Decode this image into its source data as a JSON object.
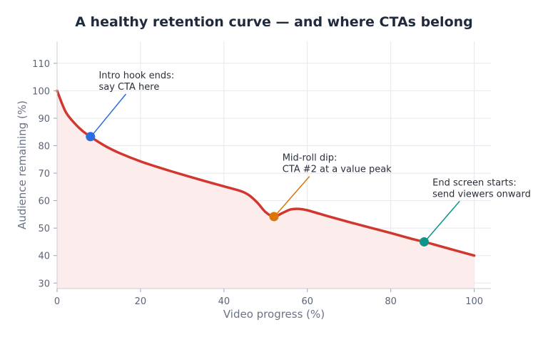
{
  "chart_data": {
    "type": "line",
    "title": "A healthy retention curve — and where CTAs belong",
    "xlabel": "Video progress (%)",
    "ylabel": "Audience remaining (%)",
    "xlim": [
      0,
      104
    ],
    "ylim": [
      28,
      118
    ],
    "xticks": [
      0,
      20,
      40,
      60,
      80,
      100
    ],
    "yticks": [
      30,
      40,
      50,
      60,
      70,
      80,
      90,
      100,
      110
    ],
    "grid": true,
    "line_color": "#d1372f",
    "fill_color": "#fdecec",
    "series": [
      {
        "x": [
          0,
          2,
          4,
          6,
          8,
          10,
          12,
          15,
          20,
          25,
          30,
          35,
          40,
          44,
          46,
          48,
          50,
          52,
          54,
          56,
          58,
          60,
          65,
          70,
          75,
          80,
          85,
          88,
          90,
          95,
          100
        ],
        "values": [
          100,
          92.5,
          88.5,
          85.5,
          83.3,
          81.3,
          79.5,
          77.3,
          74.3,
          71.8,
          69.5,
          67.3,
          65.2,
          63.5,
          62.0,
          59.3,
          55.8,
          54.2,
          55.5,
          56.8,
          57.0,
          56.5,
          54.3,
          52.2,
          50.2,
          48.2,
          46.1,
          45.0,
          44.2,
          42.1,
          40.0
        ]
      }
    ],
    "annotations": [
      {
        "x": 8,
        "y": 83.3,
        "color": "#2b6de0",
        "line1": "Intro hook ends:",
        "line2": "say CTA here",
        "tx": 10,
        "ty": 104
      },
      {
        "x": 52,
        "y": 54.2,
        "color": "#d97706",
        "line1": "Mid-roll dip:",
        "line2": "CTA #2 at a value peak",
        "tx": 54,
        "ty": 74
      },
      {
        "x": 88,
        "y": 45.0,
        "color": "#0f9488",
        "line1": "End screen starts:",
        "line2": "send viewers onward",
        "tx": 90,
        "ty": 65
      }
    ]
  }
}
